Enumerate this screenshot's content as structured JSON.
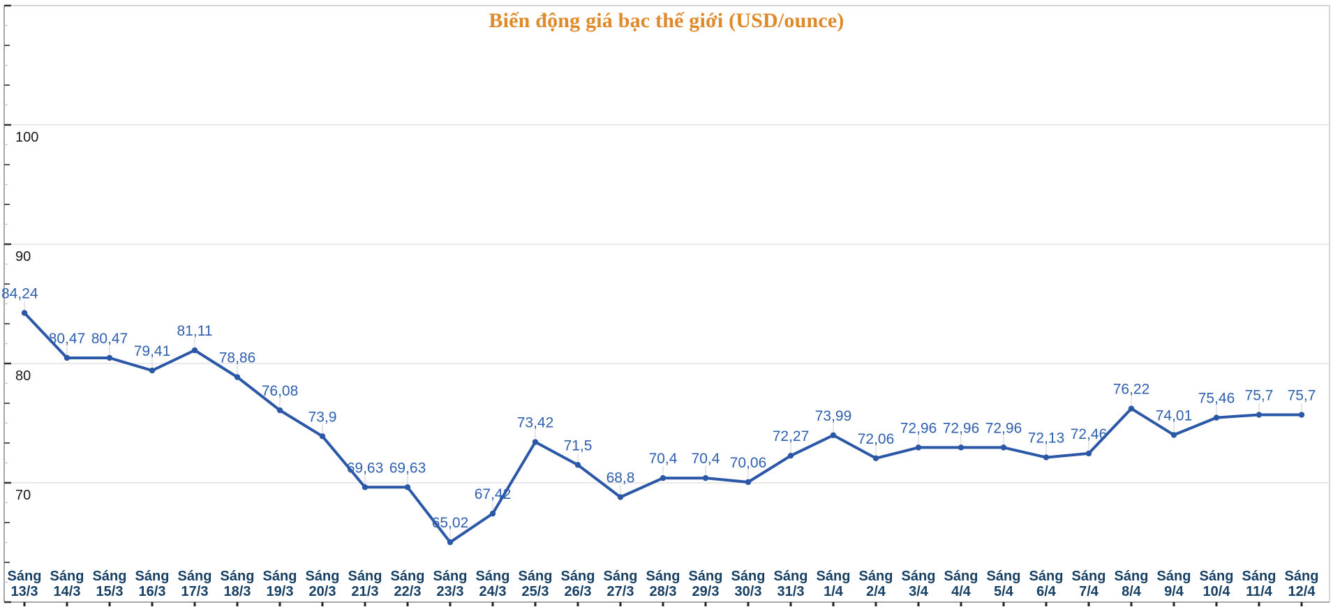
{
  "title": "Biến động giá bạc thế giới (USD/ounce)",
  "chart_data": {
    "type": "line",
    "title": "Biến động giá bạc thế giới (USD/ounce)",
    "xlabel": "",
    "ylabel": "",
    "x_prefix": "Sáng",
    "categories": [
      "13/3",
      "14/3",
      "15/3",
      "16/3",
      "17/3",
      "18/3",
      "19/3",
      "20/3",
      "21/3",
      "22/3",
      "23/3",
      "24/3",
      "25/3",
      "26/3",
      "27/3",
      "28/3",
      "29/3",
      "30/3",
      "31/3",
      "1/4",
      "2/4",
      "3/4",
      "4/4",
      "5/4",
      "6/4",
      "7/4",
      "8/4",
      "9/4",
      "10/4",
      "11/4",
      "12/4"
    ],
    "values": [
      84.24,
      80.47,
      80.47,
      79.41,
      81.11,
      78.86,
      76.08,
      73.9,
      69.63,
      69.63,
      65.02,
      67.42,
      73.42,
      71.5,
      68.8,
      70.4,
      70.4,
      70.06,
      72.27,
      73.99,
      72.06,
      72.96,
      72.96,
      72.96,
      72.13,
      72.46,
      76.22,
      74.01,
      75.46,
      75.7,
      75.7
    ],
    "value_labels": [
      "84,24",
      "80,47",
      "80,47",
      "79,41",
      "81,11",
      "78,86",
      "76,08",
      "73,9",
      "69,63",
      "69,63",
      "65,02",
      "67,42",
      "73,42",
      "71,5",
      "68,8",
      "70,4",
      "70,4",
      "70,06",
      "72,27",
      "73,99",
      "72,06",
      "72,96",
      "72,96",
      "72,96",
      "72,13",
      "72,46",
      "76,22",
      "74,01",
      "75,46",
      "75,7",
      "75,7"
    ],
    "ylim": [
      60,
      110
    ],
    "ytick_labels": [
      "70",
      "80",
      "90",
      "100"
    ],
    "ytick_values": [
      70,
      80,
      90,
      100
    ],
    "grid": true,
    "legend": null
  },
  "colors": {
    "title": "#E0892B",
    "line": "#2B57A7",
    "point": "#2B57A7",
    "value_label": "#2E5FAE",
    "x_label": "#163F63",
    "ytick_label": "#1A1A1A",
    "gridline": "#DCDCDC",
    "border": "#C9C9C9",
    "axis": "#8A8A8A",
    "tick_major": "#333333",
    "tick_medium": "#555555",
    "tick_faint": "#C0C0C0",
    "leader": "#CCCCCC",
    "x_tick": "#222222",
    "background": "#FFFFFF"
  }
}
